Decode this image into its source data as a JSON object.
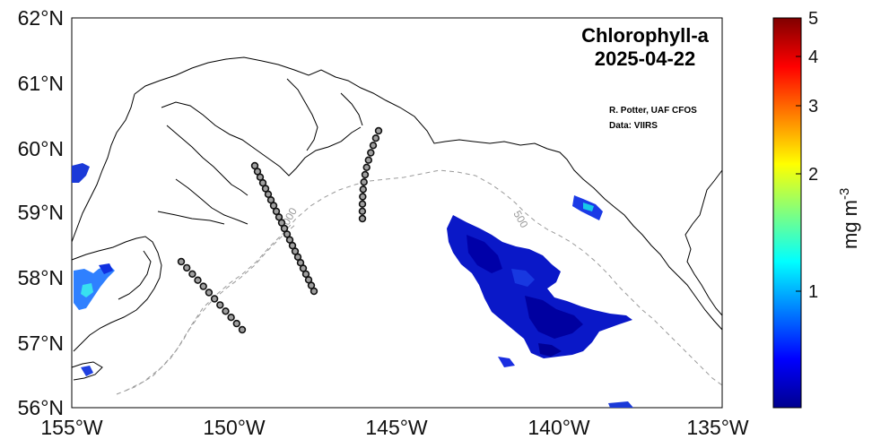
{
  "map": {
    "title": "Chlorophyll-a",
    "date": "2025-04-22",
    "credit": "R. Potter, UAF CFOS",
    "source": "Data: VIIRS",
    "lat_labels": [
      "62°N",
      "61°N",
      "60°N",
      "59°N",
      "58°N",
      "57°N",
      "56°N"
    ],
    "lon_labels": [
      "155°W",
      "150°W",
      "145°W",
      "140°W",
      "135°W"
    ],
    "contour_labels": [
      "1000",
      "500"
    ],
    "colorbar": {
      "unit_text": "mg m",
      "unit_exp": "-3",
      "ticks": [
        "5",
        "4",
        "3",
        "2",
        "1"
      ],
      "colormap": "jet",
      "scale": "log"
    },
    "colors": {
      "coast": "#000000",
      "contour": "#9a9a9a",
      "station_fill": "#a0a0a0",
      "station_edge": "#111111"
    }
  }
}
